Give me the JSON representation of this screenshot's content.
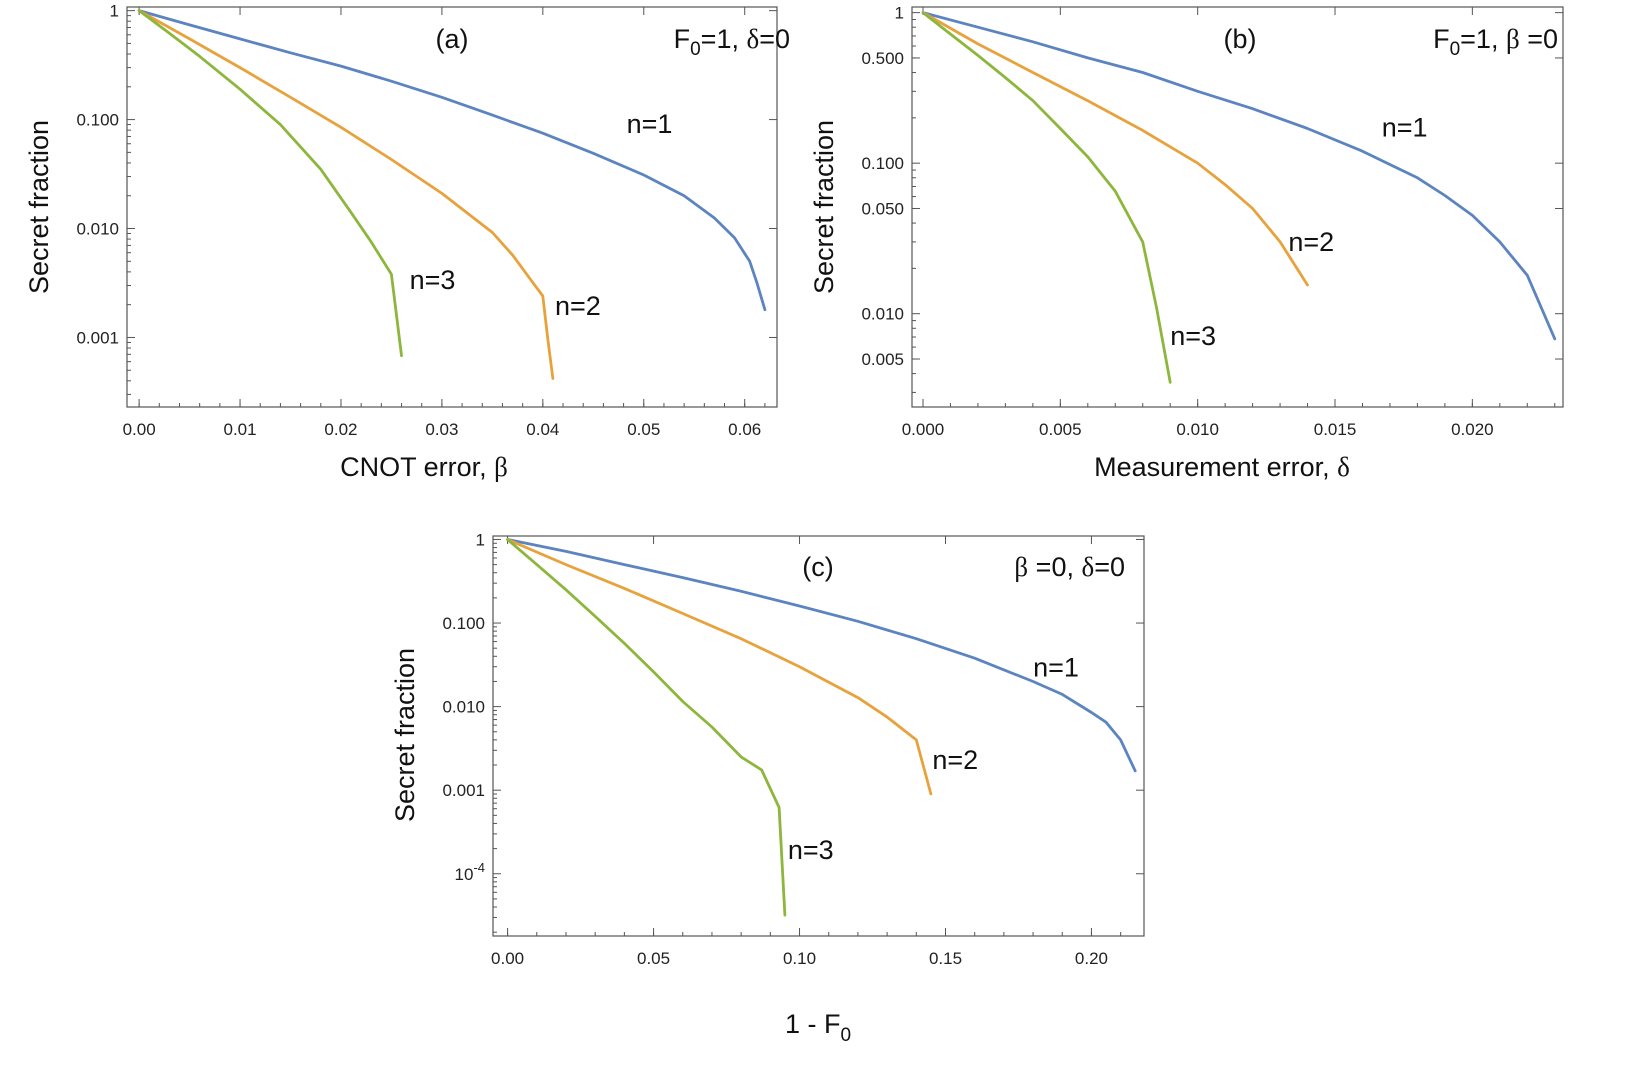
{
  "colors": {
    "n1": "#5b84c0",
    "n2": "#e8a23c",
    "n3": "#8db63c"
  },
  "chart_data": [
    {
      "type": "line",
      "panel": "(a)",
      "params": {
        "main": "F",
        "sub": "0",
        "rest1": "=1,  ",
        "greek": "δ",
        "rest2": "=0"
      },
      "xlabel": {
        "text": "CNOT error, ",
        "greek": "β"
      },
      "ylabel": "Secret fraction",
      "xlim": [
        -0.0012,
        0.0632
      ],
      "ylim": [
        0.00023,
        1.08
      ],
      "yscale": "log",
      "xticks": [
        {
          "v": 0,
          "label": "0.00"
        },
        {
          "v": 0.01,
          "label": "0.01"
        },
        {
          "v": 0.02,
          "label": "0.02"
        },
        {
          "v": 0.03,
          "label": "0.03"
        },
        {
          "v": 0.04,
          "label": "0.04"
        },
        {
          "v": 0.05,
          "label": "0.05"
        },
        {
          "v": 0.06,
          "label": "0.06"
        }
      ],
      "yticks": [
        {
          "v": 1,
          "label": "1"
        },
        {
          "v": 0.1,
          "label": "0.100"
        },
        {
          "v": 0.01,
          "label": "0.010"
        },
        {
          "v": 0.001,
          "label": "0.001"
        }
      ],
      "series": [
        {
          "name": "n=1",
          "color_key": "n1",
          "x": [
            0,
            0.005,
            0.01,
            0.015,
            0.02,
            0.025,
            0.03,
            0.035,
            0.04,
            0.045,
            0.05,
            0.054,
            0.057,
            0.059,
            0.0605,
            0.0612,
            0.062
          ],
          "y": [
            1,
            0.74,
            0.55,
            0.41,
            0.31,
            0.225,
            0.16,
            0.11,
            0.075,
            0.049,
            0.031,
            0.02,
            0.0125,
            0.0082,
            0.005,
            0.0032,
            0.0018
          ]
        },
        {
          "name": "n=2",
          "color_key": "n2",
          "x": [
            0,
            0.005,
            0.01,
            0.015,
            0.02,
            0.025,
            0.03,
            0.035,
            0.037,
            0.039,
            0.04,
            0.0405,
            0.041
          ],
          "y": [
            1,
            0.55,
            0.3,
            0.16,
            0.085,
            0.043,
            0.021,
            0.0092,
            0.0057,
            0.0032,
            0.0024,
            0.00095,
            0.00042
          ]
        },
        {
          "name": "n=3",
          "color_key": "n3",
          "x": [
            0,
            0.003,
            0.006,
            0.01,
            0.014,
            0.018,
            0.021,
            0.023,
            0.025,
            0.0255,
            0.026
          ],
          "y": [
            1,
            0.62,
            0.38,
            0.19,
            0.09,
            0.035,
            0.014,
            0.0075,
            0.0038,
            0.0016,
            0.00068
          ]
        }
      ],
      "curve_labels": [
        {
          "text": "n=1",
          "x": 0.0483,
          "y": 0.075
        },
        {
          "text": "n=2",
          "x": 0.0412,
          "y": 0.0016
        },
        {
          "text": "n=3",
          "x": 0.0268,
          "y": 0.0028
        }
      ]
    },
    {
      "type": "line",
      "panel": "(b)",
      "params": {
        "main": "F",
        "sub": "0",
        "rest1": "=1, ",
        "greek": "β",
        "rest2": " =0"
      },
      "xlabel": {
        "text": "Measurement error, ",
        "greek": "δ"
      },
      "ylabel": "Secret fraction",
      "xlim": [
        -0.0004,
        0.0233
      ],
      "ylim": [
        0.0024,
        1.09
      ],
      "yscale": "log",
      "xticks": [
        {
          "v": 0,
          "label": "0.000"
        },
        {
          "v": 0.005,
          "label": "0.005"
        },
        {
          "v": 0.01,
          "label": "0.010"
        },
        {
          "v": 0.015,
          "label": "0.015"
        },
        {
          "v": 0.02,
          "label": "0.020"
        }
      ],
      "yticks": [
        {
          "v": 1,
          "label": "1"
        },
        {
          "v": 0.5,
          "label": "0.500"
        },
        {
          "v": 0.1,
          "label": "0.100"
        },
        {
          "v": 0.05,
          "label": "0.050"
        },
        {
          "v": 0.01,
          "label": "0.010"
        },
        {
          "v": 0.005,
          "label": "0.005"
        }
      ],
      "series": [
        {
          "name": "n=1",
          "color_key": "n1",
          "x": [
            0,
            0.002,
            0.004,
            0.006,
            0.008,
            0.01,
            0.012,
            0.014,
            0.016,
            0.018,
            0.019,
            0.02,
            0.021,
            0.022,
            0.023
          ],
          "y": [
            1,
            0.8,
            0.64,
            0.5,
            0.4,
            0.3,
            0.23,
            0.17,
            0.12,
            0.08,
            0.061,
            0.045,
            0.03,
            0.018,
            0.0068
          ]
        },
        {
          "name": "n=2",
          "color_key": "n2",
          "x": [
            0,
            0.002,
            0.004,
            0.006,
            0.008,
            0.01,
            0.011,
            0.012,
            0.013,
            0.014
          ],
          "y": [
            1,
            0.62,
            0.4,
            0.26,
            0.165,
            0.1,
            0.072,
            0.05,
            0.03,
            0.0155
          ]
        },
        {
          "name": "n=3",
          "color_key": "n3",
          "x": [
            0,
            0.001,
            0.002,
            0.003,
            0.004,
            0.005,
            0.006,
            0.007,
            0.008,
            0.0085,
            0.009
          ],
          "y": [
            1,
            0.72,
            0.52,
            0.37,
            0.26,
            0.17,
            0.11,
            0.065,
            0.03,
            0.011,
            0.0035
          ]
        }
      ],
      "curve_labels": [
        {
          "text": "n=1",
          "x": 0.0167,
          "y": 0.15
        },
        {
          "text": "n=2",
          "x": 0.0133,
          "y": 0.026
        },
        {
          "text": "n=3",
          "x": 0.009,
          "y": 0.0062
        }
      ]
    },
    {
      "type": "line",
      "panel": "(c)",
      "params": {
        "main": "",
        "sub": "",
        "rest1": "",
        "greek": "β",
        "rest2": " =0, ",
        "greek2": "δ",
        "rest3": "=0"
      },
      "xlabel": {
        "text": "1 - F",
        "sub": "0"
      },
      "ylabel": "Secret fraction",
      "xlim": [
        -0.005,
        0.218
      ],
      "ylim": [
        1.8e-05,
        1.1
      ],
      "yscale": "log",
      "xticks": [
        {
          "v": 0,
          "label": "0.00"
        },
        {
          "v": 0.05,
          "label": "0.05"
        },
        {
          "v": 0.1,
          "label": "0.10"
        },
        {
          "v": 0.15,
          "label": "0.15"
        },
        {
          "v": 0.2,
          "label": "0.20"
        }
      ],
      "yticks": [
        {
          "v": 1,
          "label": "1"
        },
        {
          "v": 0.1,
          "label": "0.100"
        },
        {
          "v": 0.01,
          "label": "0.010"
        },
        {
          "v": 0.001,
          "label": "0.001"
        },
        {
          "v": 0.0001,
          "label": "10",
          "sup": "-4"
        }
      ],
      "series": [
        {
          "name": "n=1",
          "color_key": "n1",
          "x": [
            0,
            0.02,
            0.04,
            0.06,
            0.08,
            0.1,
            0.12,
            0.14,
            0.16,
            0.18,
            0.19,
            0.2,
            0.205,
            0.21,
            0.215
          ],
          "y": [
            1,
            0.72,
            0.5,
            0.35,
            0.24,
            0.16,
            0.105,
            0.065,
            0.038,
            0.02,
            0.014,
            0.0085,
            0.0065,
            0.004,
            0.0017
          ]
        },
        {
          "name": "n=2",
          "color_key": "n2",
          "x": [
            0,
            0.02,
            0.04,
            0.06,
            0.08,
            0.1,
            0.12,
            0.13,
            0.14,
            0.145
          ],
          "y": [
            1,
            0.5,
            0.26,
            0.13,
            0.065,
            0.03,
            0.0128,
            0.0075,
            0.004,
            0.0009
          ]
        },
        {
          "name": "n=3",
          "color_key": "n3",
          "x": [
            0,
            0.01,
            0.02,
            0.03,
            0.04,
            0.05,
            0.06,
            0.07,
            0.08,
            0.087,
            0.093,
            0.095
          ],
          "y": [
            1,
            0.5,
            0.25,
            0.12,
            0.057,
            0.026,
            0.0115,
            0.0057,
            0.0025,
            0.00175,
            0.00062,
            3.2e-05
          ]
        }
      ],
      "curve_labels": [
        {
          "text": "n=1",
          "x": 0.18,
          "y": 0.023
        },
        {
          "text": "n=2",
          "x": 0.1455,
          "y": 0.0018
        },
        {
          "text": "n=3",
          "x": 0.096,
          "y": 0.00015
        }
      ]
    }
  ]
}
